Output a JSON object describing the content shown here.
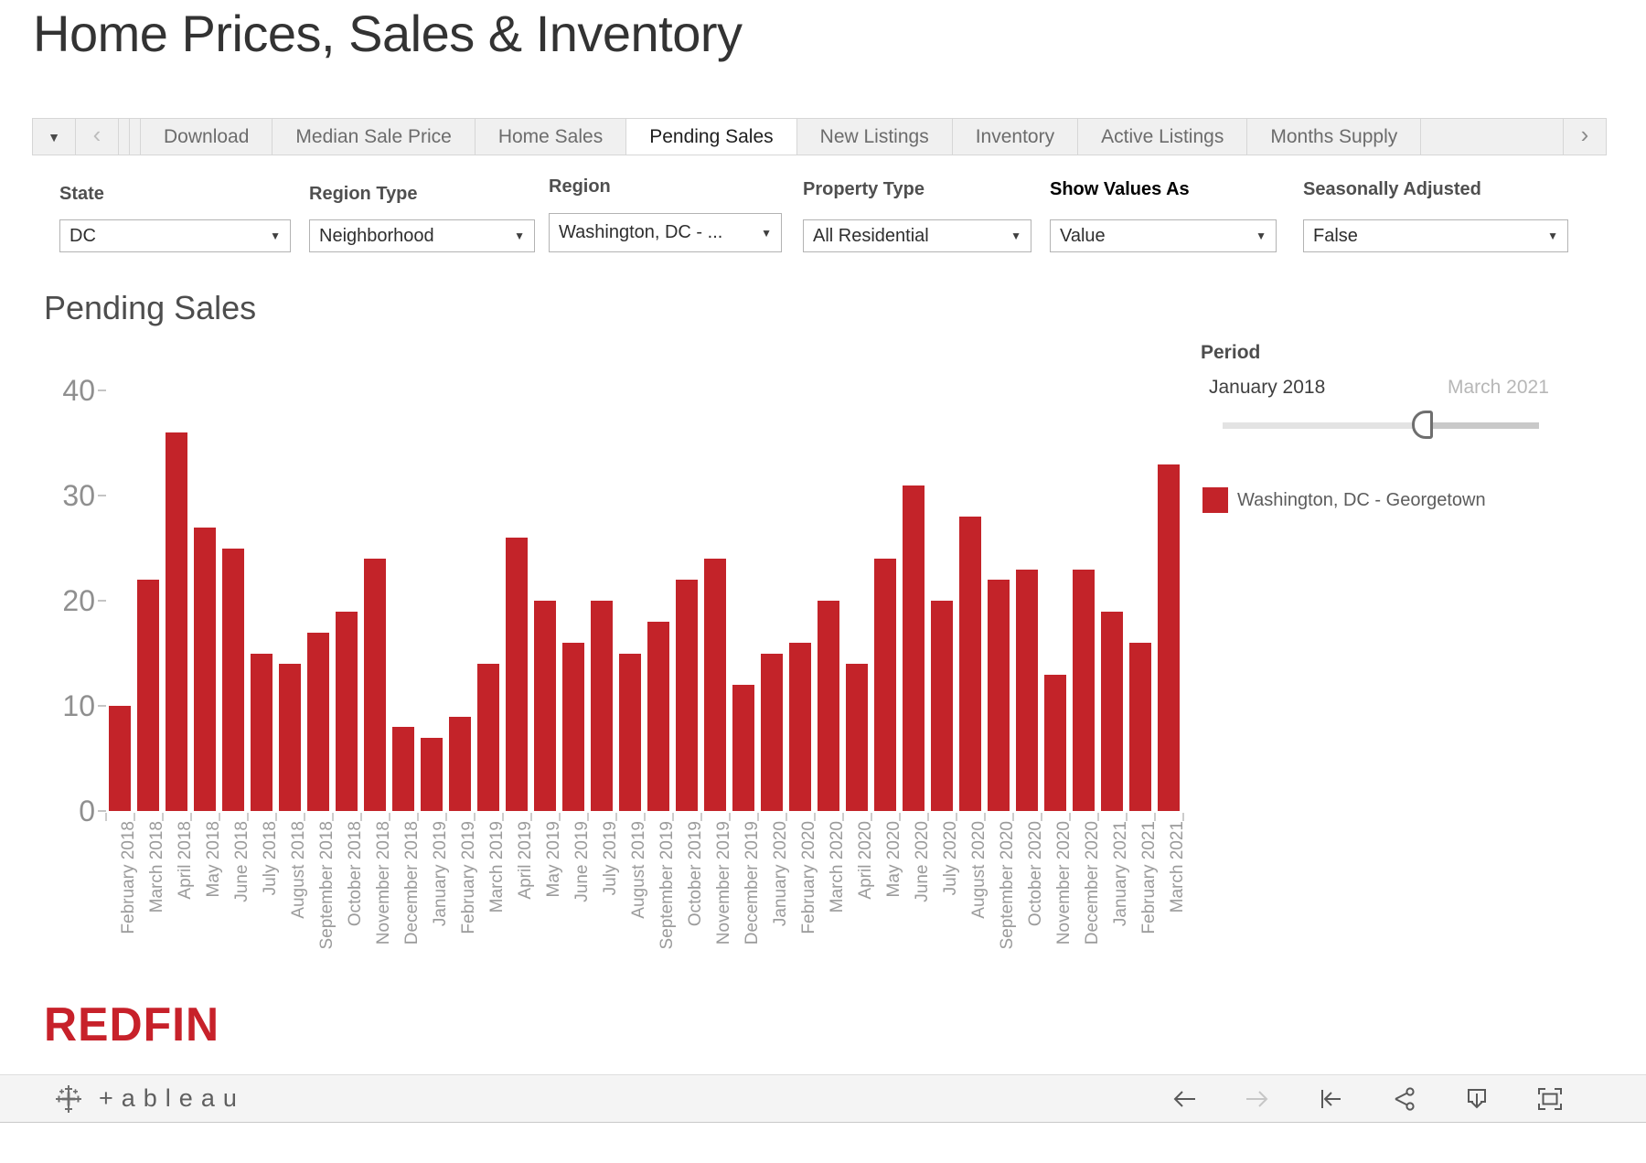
{
  "title": "Home Prices, Sales & Inventory",
  "tab_bar": {
    "menu_caret": "▼",
    "prev": "‹",
    "next": "›",
    "tabs": [
      {
        "label": "Download",
        "active": false
      },
      {
        "label": "Median Sale Price",
        "active": false
      },
      {
        "label": "Home Sales",
        "active": false
      },
      {
        "label": "Pending Sales",
        "active": true
      },
      {
        "label": "New Listings",
        "active": false
      },
      {
        "label": "Inventory",
        "active": false
      },
      {
        "label": "Active Listings",
        "active": false
      },
      {
        "label": "Months Supply",
        "active": false
      }
    ]
  },
  "filters": [
    {
      "label": "State",
      "value": "DC"
    },
    {
      "label": "Region Type",
      "value": "Neighborhood"
    },
    {
      "label": "Region",
      "value": "Washington, DC - ..."
    },
    {
      "label": "Property Type",
      "value": "All Residential"
    },
    {
      "label": "Show Values As",
      "value": "Value"
    },
    {
      "label": "Seasonally Adjusted",
      "value": "False"
    }
  ],
  "chart_heading": "Pending Sales",
  "chart_data": {
    "type": "bar",
    "title": "Pending Sales",
    "series_name": "Washington, DC - Georgetown",
    "bar_color": "#c32329",
    "grid": false,
    "legend_position": "right",
    "ylim": [
      0,
      40
    ],
    "yticks": [
      0,
      10,
      20,
      30,
      40
    ],
    "categories": [
      "February 2018",
      "March 2018",
      "April 2018",
      "May 2018",
      "June 2018",
      "July 2018",
      "August 2018",
      "September 2018",
      "October 2018",
      "November 2018",
      "December 2018",
      "January 2019",
      "February 2019",
      "March 2019",
      "April 2019",
      "May 2019",
      "June 2019",
      "July 2019",
      "August 2019",
      "September 2019",
      "October 2019",
      "November 2019",
      "December 2019",
      "January 2020",
      "February 2020",
      "March 2020",
      "April 2020",
      "May 2020",
      "June 2020",
      "July 2020",
      "August 2020",
      "September 2020",
      "October 2020",
      "November 2020",
      "December 2020",
      "January 2021",
      "February 2021",
      "March 2021"
    ],
    "values": [
      10,
      22,
      36,
      27,
      25,
      15,
      14,
      17,
      19,
      24,
      8,
      7,
      9,
      14,
      26,
      20,
      16,
      20,
      15,
      18,
      22,
      24,
      12,
      15,
      16,
      20,
      14,
      24,
      31,
      20,
      28,
      22,
      23,
      13,
      23,
      19,
      16,
      33
    ]
  },
  "period": {
    "label": "Period",
    "start": "January 2018",
    "end": "March 2021",
    "progress": 0.63
  },
  "legend": {
    "label": "Washington, DC - Georgetown"
  },
  "redfin_logo": "REDFIN",
  "tableau": {
    "wordmark": "+ableau",
    "icons": [
      "undo-icon",
      "redo-icon",
      "reset-icon",
      "share-icon",
      "download-icon",
      "fullscreen-icon"
    ]
  }
}
